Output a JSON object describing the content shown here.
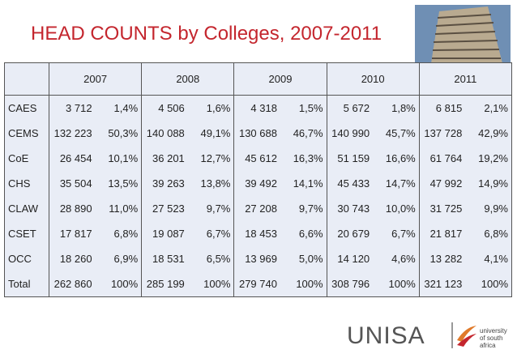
{
  "header": {
    "title": "HEAD COUNTS by Colleges, 2007-2011"
  },
  "table": {
    "years": [
      "2007",
      "2008",
      "2009",
      "2010",
      "2011"
    ],
    "rows": [
      [
        "CAES",
        "3 712",
        "1,4%",
        "4 506",
        "1,6%",
        "4 318",
        "1,5%",
        "5 672",
        "1,8%",
        "6 815",
        "2,1%"
      ],
      [
        "CEMS",
        "132 223",
        "50,3%",
        "140 088",
        "49,1%",
        "130 688",
        "46,7%",
        "140 990",
        "45,7%",
        "137 728",
        "42,9%"
      ],
      [
        "CoE",
        "26 454",
        "10,1%",
        "36 201",
        "12,7%",
        "45 612",
        "16,3%",
        "51 159",
        "16,6%",
        "61 764",
        "19,2%"
      ],
      [
        "CHS",
        "35 504",
        "13,5%",
        "39 263",
        "13,8%",
        "39 492",
        "14,1%",
        "45 433",
        "14,7%",
        "47 992",
        "14,9%"
      ],
      [
        "CLAW",
        "28 890",
        "11,0%",
        "27 523",
        "9,7%",
        "27 208",
        "9,7%",
        "30 743",
        "10,0%",
        "31 725",
        "9,9%"
      ],
      [
        "CSET",
        "17 817",
        "6,8%",
        "19 087",
        "6,7%",
        "18 453",
        "6,6%",
        "20 679",
        "6,7%",
        "21 817",
        "6,8%"
      ],
      [
        "OCC",
        "18 260",
        "6,9%",
        "18 531",
        "6,5%",
        "13 969",
        "5,0%",
        "14 120",
        "4,6%",
        "13 282",
        "4,1%"
      ],
      [
        "Total",
        "262 860",
        "100%",
        "285 199",
        "100%",
        "279 740",
        "100%",
        "308 796",
        "100%",
        "321 123",
        "100%"
      ]
    ]
  },
  "logo": {
    "name": "UNISA",
    "tagline": [
      "university",
      "of south africa"
    ]
  }
}
